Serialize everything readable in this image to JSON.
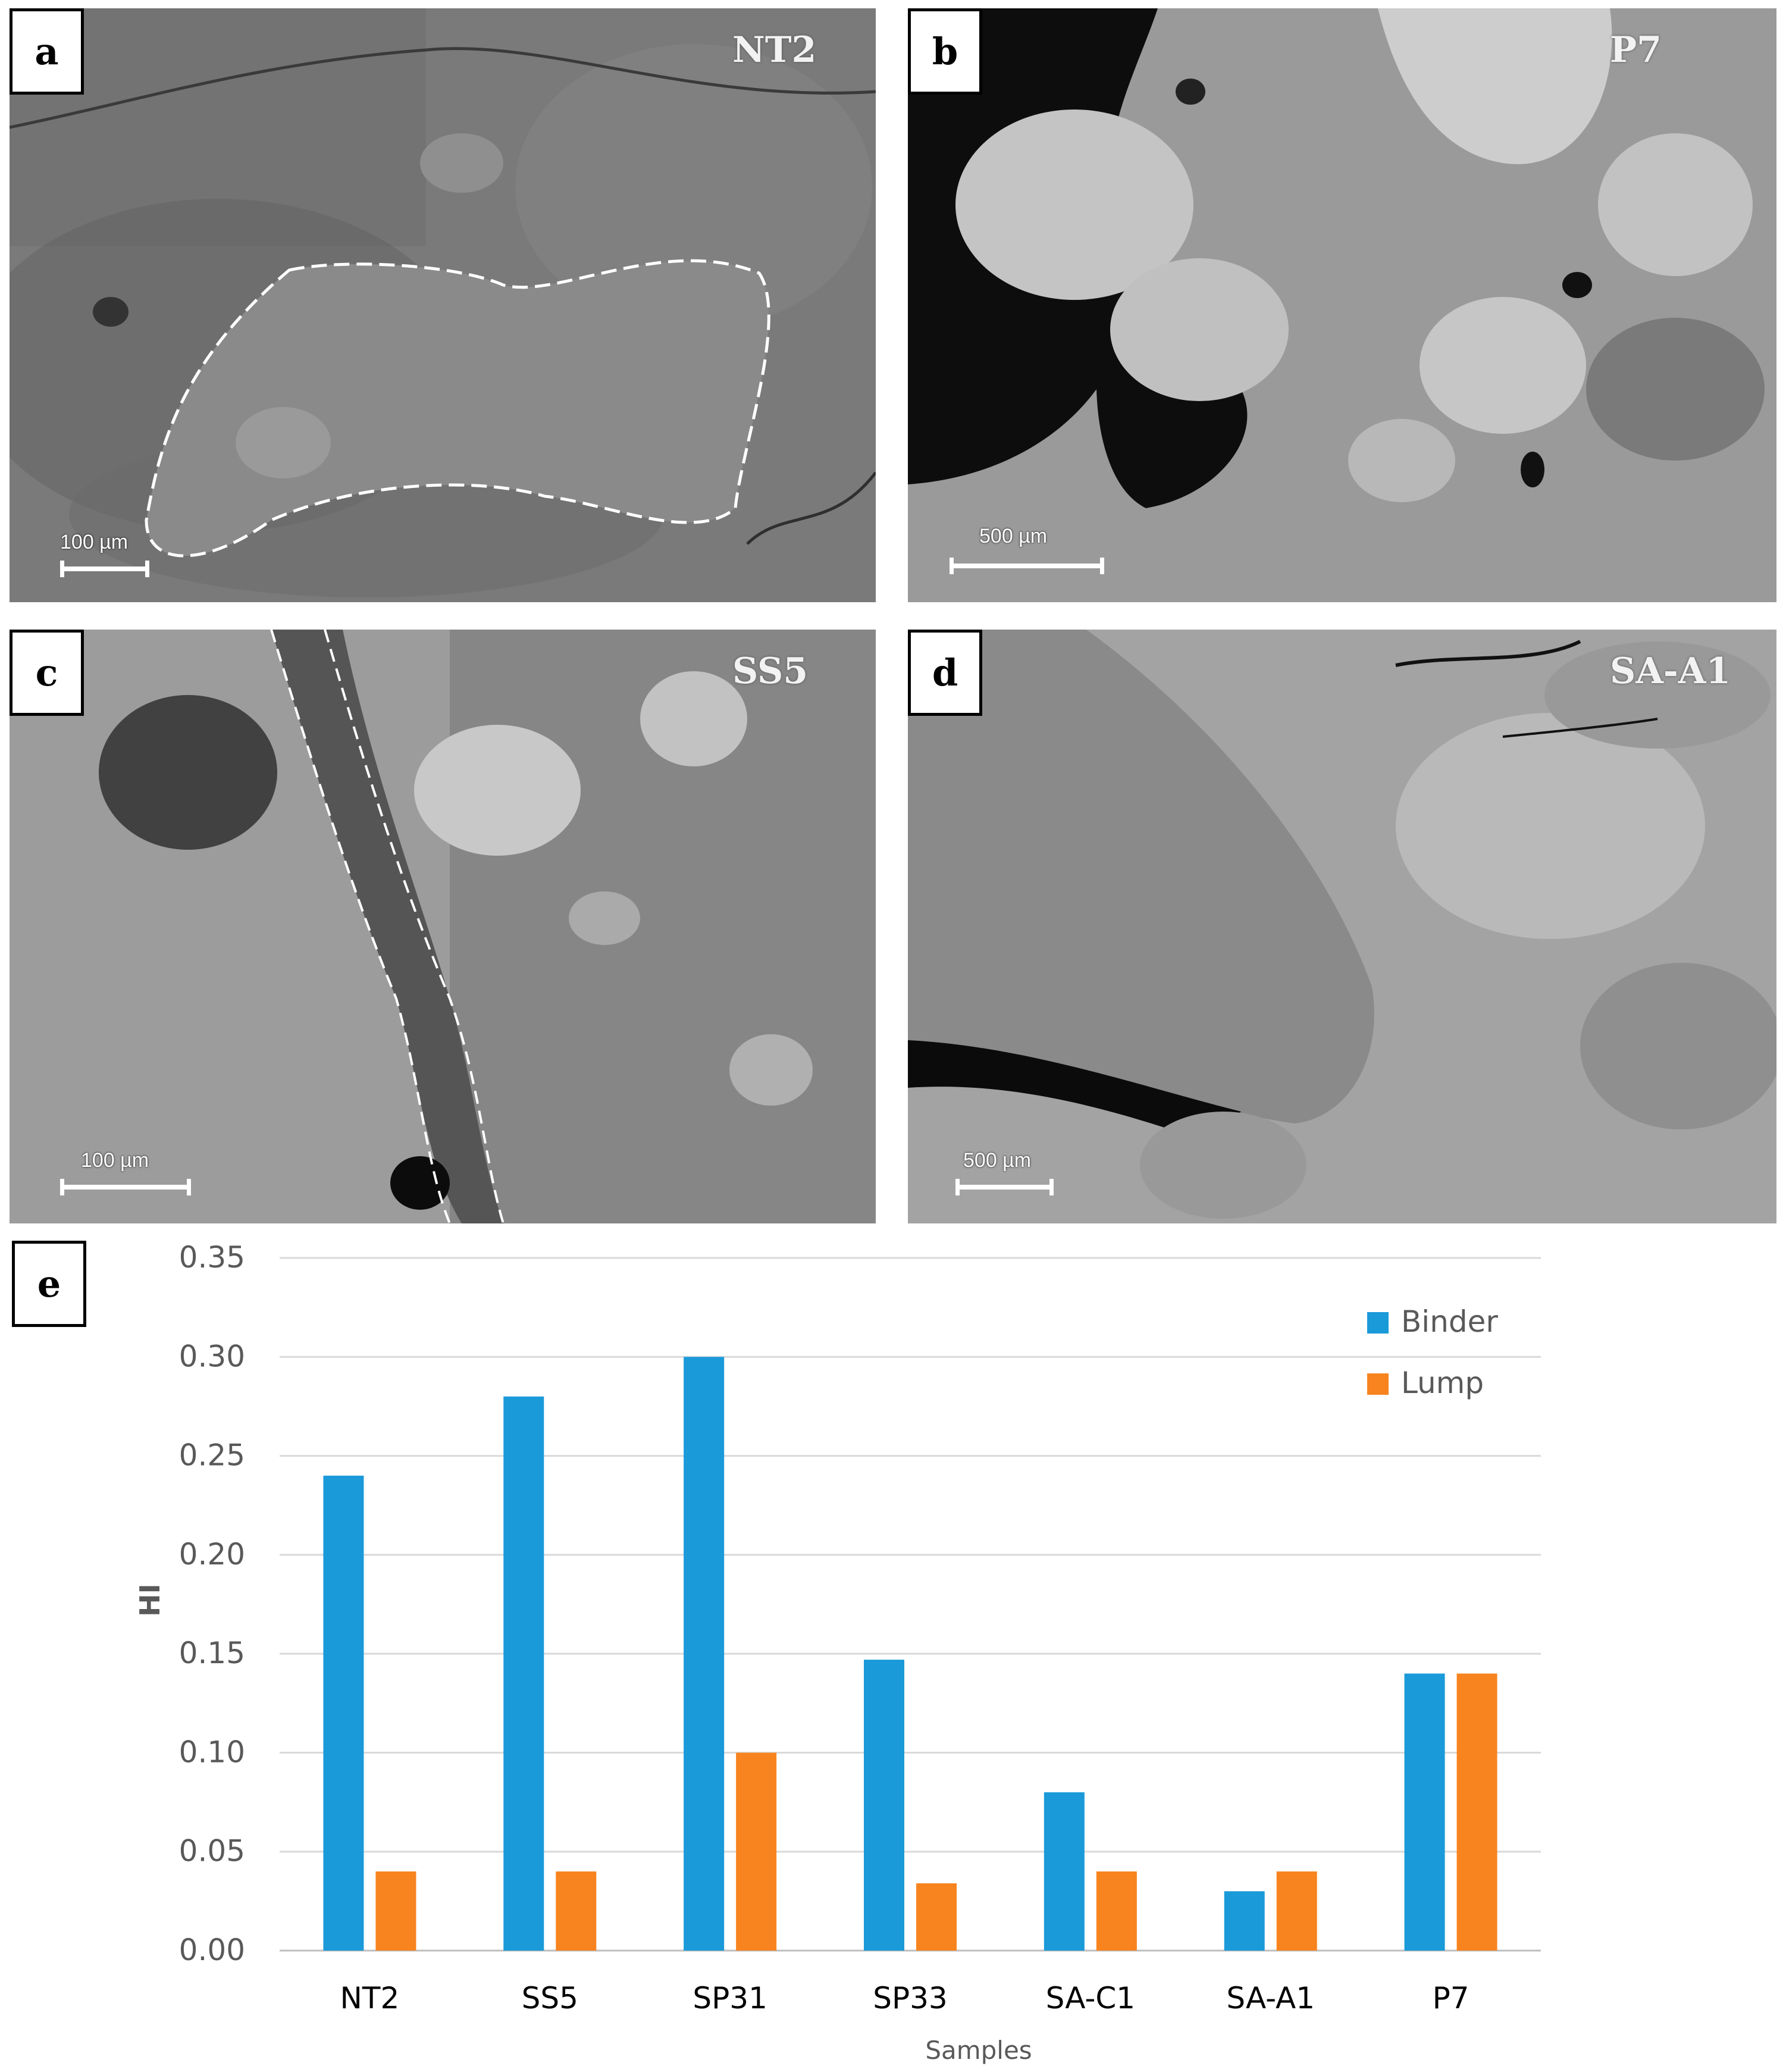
{
  "panels": [
    {
      "letter": "a",
      "sample": "NT2",
      "scale": "100 µm"
    },
    {
      "letter": "b",
      "sample": "P7",
      "scale": "500 µm"
    },
    {
      "letter": "c",
      "sample": "SS5",
      "scale": "100 µm"
    },
    {
      "letter": "d",
      "sample": "SA-A1",
      "scale": "500 µm"
    }
  ],
  "chart_panel_letter": "e",
  "colors": {
    "binder": "#1a9ad9",
    "lump": "#f7841f"
  },
  "chart_data": {
    "type": "bar",
    "categories": [
      "NT2",
      "SS5",
      "SP31",
      "SP33",
      "SA-C1",
      "SA-A1",
      "P7"
    ],
    "series": [
      {
        "name": "Binder",
        "values": [
          0.24,
          0.28,
          0.3,
          0.147,
          0.08,
          0.03,
          0.14
        ]
      },
      {
        "name": "Lump",
        "values": [
          0.04,
          0.04,
          0.1,
          0.034,
          0.04,
          0.04,
          0.14
        ]
      }
    ],
    "yticks": [
      "0.00",
      "0.05",
      "0.10",
      "0.15",
      "0.20",
      "0.25",
      "0.30",
      "0.35"
    ],
    "ylim": [
      0,
      0.35
    ],
    "xlabel": "Samples",
    "ylabel": "HI",
    "legend_position": "top-right",
    "grid": true
  }
}
